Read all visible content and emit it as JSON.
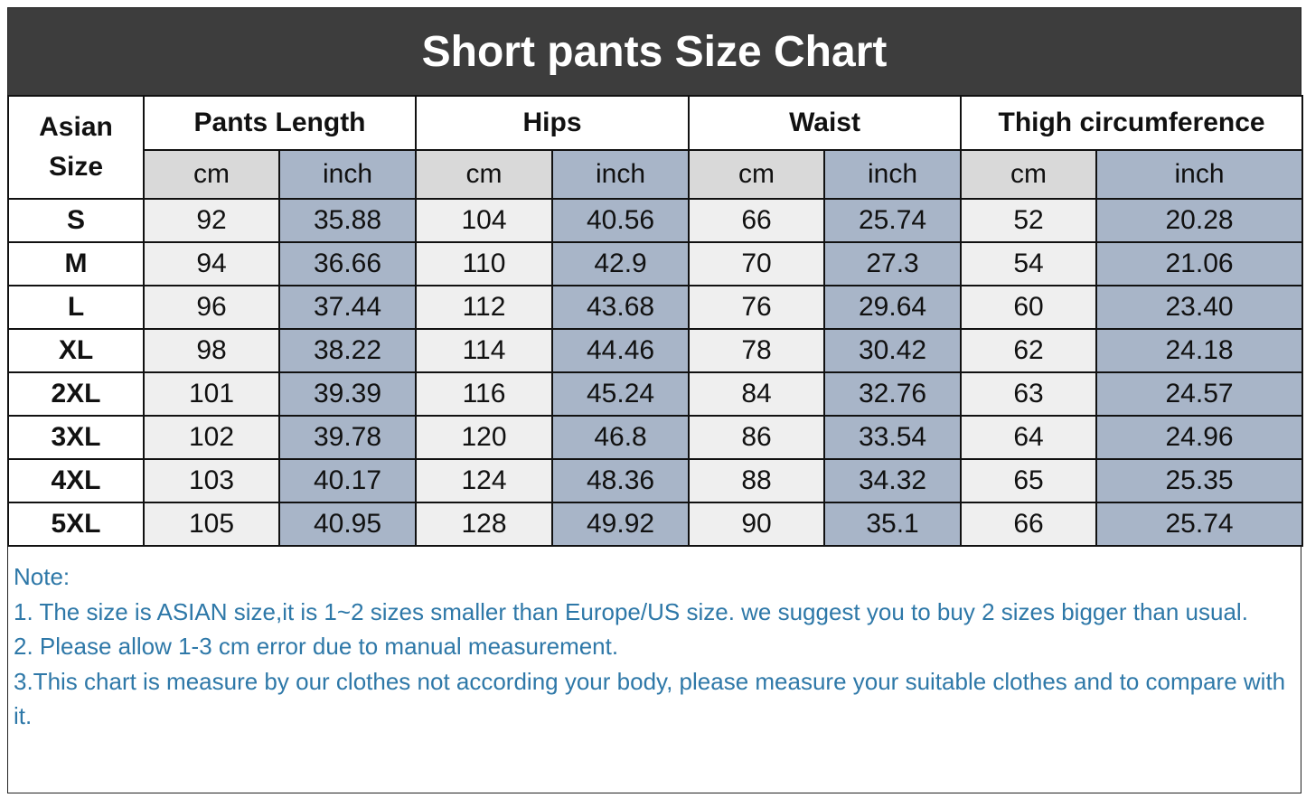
{
  "header": {
    "title": "Short pants Size Chart"
  },
  "table": {
    "corner": "Asian Size",
    "groups": [
      "Pants Length",
      "Hips",
      "Waist",
      "Thigh circumference"
    ],
    "units": [
      "cm",
      "inch",
      "cm",
      "inch",
      "cm",
      "inch",
      "cm",
      "inch"
    ],
    "rows": [
      [
        "S",
        "92",
        "35.88",
        "104",
        "40.56",
        "66",
        "25.74",
        "52",
        "20.28"
      ],
      [
        "M",
        "94",
        "36.66",
        "110",
        "42.9",
        "70",
        "27.3",
        "54",
        "21.06"
      ],
      [
        "L",
        "96",
        "37.44",
        "112",
        "43.68",
        "76",
        "29.64",
        "60",
        "23.40"
      ],
      [
        "XL",
        "98",
        "38.22",
        "114",
        "44.46",
        "78",
        "30.42",
        "62",
        "24.18"
      ],
      [
        "2XL",
        "101",
        "39.39",
        "116",
        "45.24",
        "84",
        "32.76",
        "63",
        "24.57"
      ],
      [
        "3XL",
        "102",
        "39.78",
        "120",
        "46.8",
        "86",
        "33.54",
        "64",
        "24.96"
      ],
      [
        "4XL",
        "103",
        "40.17",
        "124",
        "48.36",
        "88",
        "34.32",
        "65",
        "25.35"
      ],
      [
        "5XL",
        "105",
        "40.95",
        "128",
        "49.92",
        "90",
        "35.1",
        "66",
        "25.74"
      ]
    ]
  },
  "notes": {
    "heading": "Note:",
    "items": [
      "1. The size is ASIAN size,it is 1~2 sizes smaller than Europe/US size. we suggest you to buy 2 sizes bigger than usual.",
      "2. Please allow 1-3 cm error due to manual measurement.",
      "3.This chart is measure by our clothes not according your body, please measure your suitable clothes and to compare with it."
    ]
  }
}
